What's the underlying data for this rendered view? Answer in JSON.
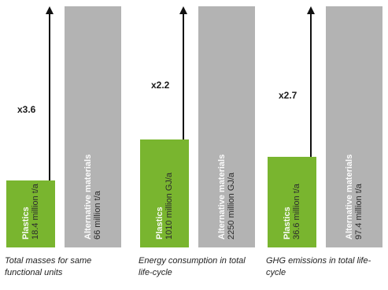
{
  "chart_data": {
    "type": "bar",
    "colors": {
      "plastics": "#79b52f",
      "alternative": "#b3b3b3"
    },
    "groups": [
      {
        "caption": "Total masses for same functional units",
        "factor": "x3.6",
        "bars": [
          {
            "material": "Plastics",
            "value_label": "18.4 million t/a",
            "value": 18.4
          },
          {
            "material": "Alternative materials",
            "value_label": "66 million t/a",
            "value": 66
          }
        ]
      },
      {
        "caption": "Energy consumption in total life-cycle",
        "factor": "x2.2",
        "bars": [
          {
            "material": "Plastics",
            "value_label": "1010 million GJ/a",
            "value": 1010
          },
          {
            "material": "Alternative materials",
            "value_label": "2250 million GJ/a",
            "value": 2250
          }
        ]
      },
      {
        "caption": "GHG emissions in total life-cycle",
        "factor": "x2.7",
        "bars": [
          {
            "material": "Plastics",
            "value_label": "36.6 million t/a",
            "value": 36.6
          },
          {
            "material": "Alternative materials",
            "value_label": "97.4 million t/a",
            "value": 97.4
          }
        ]
      }
    ]
  }
}
